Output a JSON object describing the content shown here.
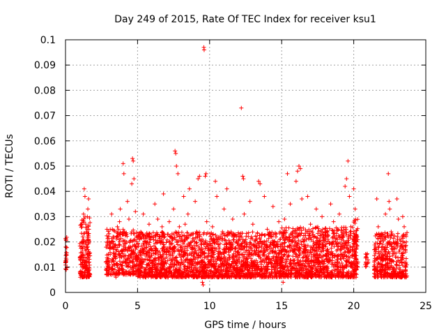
{
  "chart_data": {
    "type": "scatter",
    "title": "Day 249 of 2015, Rate Of TEC Index for receiver ksu1",
    "xlabel": "GPS time / hours",
    "ylabel": "ROTI / TECUs",
    "xlim": [
      0,
      25
    ],
    "ylim": [
      0,
      0.1
    ],
    "xticks": [
      0,
      5,
      10,
      15,
      20,
      25
    ],
    "xtick_labels": [
      "0",
      "5",
      "10",
      "15",
      "20",
      "25"
    ],
    "yticks": [
      0,
      0.01,
      0.02,
      0.03,
      0.04,
      0.05,
      0.06,
      0.07,
      0.08,
      0.09,
      0.1
    ],
    "ytick_labels": [
      "0",
      "0.01",
      "0.02",
      "0.03",
      "0.04",
      "0.05",
      "0.06",
      "0.07",
      "0.08",
      "0.09",
      "0.1"
    ],
    "grid": true,
    "marker": "+",
    "color": "#ff0000",
    "series": [
      {
        "name": "",
        "points": [
          [
            0.0,
            0.012
          ],
          [
            0.02,
            0.018
          ],
          [
            0.03,
            0.021
          ],
          [
            0.05,
            0.009
          ],
          [
            0.06,
            0.013
          ],
          [
            1.05,
            0.011
          ],
          [
            1.1,
            0.014
          ],
          [
            1.2,
            0.022
          ],
          [
            1.25,
            0.031
          ],
          [
            1.3,
            0.041
          ],
          [
            1.35,
            0.038
          ],
          [
            1.4,
            0.027
          ],
          [
            1.45,
            0.019
          ],
          [
            1.5,
            0.009
          ],
          [
            1.55,
            0.015
          ],
          [
            1.6,
            0.037
          ],
          [
            1.62,
            0.025
          ],
          [
            1.65,
            0.012
          ],
          [
            1.7,
            0.007
          ],
          [
            1.2,
            0.006
          ],
          [
            1.3,
            0.008
          ],
          [
            1.4,
            0.012
          ],
          [
            1.5,
            0.018
          ],
          [
            1.6,
            0.021
          ],
          [
            1.15,
            0.016
          ],
          [
            1.35,
            0.011
          ],
          [
            1.45,
            0.024
          ],
          [
            1.55,
            0.033
          ],
          [
            2.8,
            0.012
          ],
          [
            2.9,
            0.018
          ],
          [
            3.0,
            0.009
          ],
          [
            3.1,
            0.015
          ],
          [
            3.2,
            0.031
          ],
          [
            3.3,
            0.022
          ],
          [
            3.4,
            0.011
          ],
          [
            3.5,
            0.017
          ],
          [
            3.6,
            0.026
          ],
          [
            3.7,
            0.019
          ],
          [
            3.8,
            0.033
          ],
          [
            3.9,
            0.014
          ],
          [
            4.0,
            0.051
          ],
          [
            4.05,
            0.047
          ],
          [
            4.1,
            0.024
          ],
          [
            4.2,
            0.012
          ],
          [
            4.3,
            0.036
          ],
          [
            4.4,
            0.029
          ],
          [
            4.5,
            0.018
          ],
          [
            4.6,
            0.043
          ],
          [
            4.65,
            0.053
          ],
          [
            4.7,
            0.052
          ],
          [
            4.75,
            0.045
          ],
          [
            4.8,
            0.021
          ],
          [
            4.9,
            0.014
          ],
          [
            3.0,
            0.007
          ],
          [
            3.5,
            0.006
          ],
          [
            4.0,
            0.008
          ],
          [
            4.5,
            0.007
          ],
          [
            3.25,
            0.025
          ],
          [
            3.75,
            0.028
          ],
          [
            4.25,
            0.02
          ],
          [
            4.85,
            0.032
          ],
          [
            5.0,
            0.013
          ],
          [
            5.2,
            0.022
          ],
          [
            5.4,
            0.031
          ],
          [
            5.6,
            0.018
          ],
          [
            5.8,
            0.027
          ],
          [
            6.0,
            0.012
          ],
          [
            6.2,
            0.035
          ],
          [
            6.4,
            0.029
          ],
          [
            6.5,
            0.022
          ],
          [
            6.6,
            0.015
          ],
          [
            6.8,
            0.039
          ],
          [
            7.0,
            0.017
          ],
          [
            7.2,
            0.028
          ],
          [
            7.4,
            0.011
          ],
          [
            7.5,
            0.033
          ],
          [
            7.6,
            0.056
          ],
          [
            7.65,
            0.055
          ],
          [
            7.7,
            0.05
          ],
          [
            7.8,
            0.047
          ],
          [
            7.9,
            0.026
          ],
          [
            8.0,
            0.014
          ],
          [
            8.2,
            0.038
          ],
          [
            8.4,
            0.022
          ],
          [
            8.5,
            0.031
          ],
          [
            8.6,
            0.041
          ],
          [
            8.8,
            0.017
          ],
          [
            9.0,
            0.036
          ],
          [
            9.2,
            0.045
          ],
          [
            9.3,
            0.046
          ],
          [
            9.4,
            0.019
          ],
          [
            9.5,
            0.004
          ],
          [
            9.55,
            0.003
          ],
          [
            9.6,
            0.097
          ],
          [
            9.62,
            0.096
          ],
          [
            9.7,
            0.046
          ],
          [
            9.75,
            0.047
          ],
          [
            9.8,
            0.028
          ],
          [
            9.9,
            0.013
          ],
          [
            5.5,
            0.008
          ],
          [
            6.3,
            0.007
          ],
          [
            7.1,
            0.006
          ],
          [
            8.1,
            0.008
          ],
          [
            8.9,
            0.009
          ],
          [
            5.1,
            0.016
          ],
          [
            5.9,
            0.021
          ],
          [
            6.7,
            0.026
          ],
          [
            7.3,
            0.019
          ],
          [
            8.3,
            0.027
          ],
          [
            9.1,
            0.024
          ],
          [
            6.9,
            0.012
          ],
          [
            7.7,
            0.014
          ],
          [
            8.7,
            0.011
          ],
          [
            9.45,
            0.016
          ],
          [
            10.0,
            0.012
          ],
          [
            10.2,
            0.026
          ],
          [
            10.4,
            0.044
          ],
          [
            10.5,
            0.038
          ],
          [
            10.6,
            0.021
          ],
          [
            10.8,
            0.015
          ],
          [
            11.0,
            0.033
          ],
          [
            11.2,
            0.041
          ],
          [
            11.4,
            0.018
          ],
          [
            11.6,
            0.029
          ],
          [
            11.8,
            0.023
          ],
          [
            12.0,
            0.016
          ],
          [
            12.2,
            0.073
          ],
          [
            12.3,
            0.046
          ],
          [
            12.35,
            0.045
          ],
          [
            12.4,
            0.031
          ],
          [
            12.6,
            0.019
          ],
          [
            12.8,
            0.036
          ],
          [
            13.0,
            0.027
          ],
          [
            13.2,
            0.021
          ],
          [
            13.4,
            0.044
          ],
          [
            13.5,
            0.043
          ],
          [
            13.6,
            0.018
          ],
          [
            13.8,
            0.038
          ],
          [
            14.0,
            0.025
          ],
          [
            14.2,
            0.016
          ],
          [
            14.4,
            0.034
          ],
          [
            14.6,
            0.022
          ],
          [
            14.8,
            0.028
          ],
          [
            10.3,
            0.008
          ],
          [
            11.1,
            0.007
          ],
          [
            11.9,
            0.006
          ],
          [
            12.7,
            0.008
          ],
          [
            13.5,
            0.007
          ],
          [
            14.3,
            0.009
          ],
          [
            10.7,
            0.013
          ],
          [
            11.5,
            0.017
          ],
          [
            12.5,
            0.012
          ],
          [
            13.3,
            0.015
          ],
          [
            14.1,
            0.013
          ],
          [
            14.9,
            0.019
          ],
          [
            15.0,
            0.012
          ],
          [
            15.2,
            0.029
          ],
          [
            15.4,
            0.047
          ],
          [
            15.6,
            0.035
          ],
          [
            15.8,
            0.022
          ],
          [
            16.0,
            0.044
          ],
          [
            16.1,
            0.048
          ],
          [
            16.2,
            0.05
          ],
          [
            16.3,
            0.049
          ],
          [
            16.4,
            0.037
          ],
          [
            16.6,
            0.021
          ],
          [
            16.8,
            0.038
          ],
          [
            17.0,
            0.027
          ],
          [
            17.2,
            0.015
          ],
          [
            17.4,
            0.033
          ],
          [
            17.6,
            0.02
          ],
          [
            17.8,
            0.03
          ],
          [
            18.0,
            0.024
          ],
          [
            18.2,
            0.017
          ],
          [
            18.4,
            0.035
          ],
          [
            18.6,
            0.028
          ],
          [
            18.8,
            0.019
          ],
          [
            19.0,
            0.031
          ],
          [
            19.2,
            0.022
          ],
          [
            19.4,
            0.042
          ],
          [
            19.5,
            0.045
          ],
          [
            19.6,
            0.052
          ],
          [
            19.7,
            0.038
          ],
          [
            19.8,
            0.026
          ],
          [
            20.0,
            0.041
          ],
          [
            20.1,
            0.033
          ],
          [
            20.2,
            0.02
          ],
          [
            20.3,
            0.012
          ],
          [
            15.1,
            0.004
          ],
          [
            16.5,
            0.008
          ],
          [
            17.5,
            0.007
          ],
          [
            18.5,
            0.006
          ],
          [
            19.3,
            0.008
          ],
          [
            20.2,
            0.009
          ],
          [
            15.5,
            0.016
          ],
          [
            16.7,
            0.014
          ],
          [
            17.3,
            0.012
          ],
          [
            18.1,
            0.013
          ],
          [
            19.1,
            0.015
          ],
          [
            19.9,
            0.017
          ],
          [
            20.8,
            0.011
          ],
          [
            20.9,
            0.015
          ],
          [
            21.0,
            0.012
          ],
          [
            21.5,
            0.018
          ],
          [
            21.6,
            0.037
          ],
          [
            21.7,
            0.026
          ],
          [
            21.8,
            0.022
          ],
          [
            22.0,
            0.015
          ],
          [
            22.2,
            0.031
          ],
          [
            22.4,
            0.047
          ],
          [
            22.45,
            0.036
          ],
          [
            22.5,
            0.033
          ],
          [
            22.6,
            0.024
          ],
          [
            22.8,
            0.018
          ],
          [
            23.0,
            0.037
          ],
          [
            23.1,
            0.029
          ],
          [
            23.2,
            0.021
          ],
          [
            23.4,
            0.03
          ],
          [
            23.5,
            0.026
          ],
          [
            23.6,
            0.016
          ],
          [
            21.5,
            0.009
          ],
          [
            22.1,
            0.007
          ],
          [
            22.7,
            0.006
          ],
          [
            23.3,
            0.008
          ],
          [
            23.6,
            0.009
          ],
          [
            21.9,
            0.013
          ],
          [
            22.3,
            0.011
          ],
          [
            22.9,
            0.014
          ],
          [
            23.5,
            0.012
          ]
        ],
        "density_bands": [
          {
            "x": [
              0.0,
              0.1
            ],
            "y": [
              0.008,
              0.022
            ],
            "n": 20
          },
          {
            "x": [
              1.0,
              1.7
            ],
            "y": [
              0.006,
              0.03
            ],
            "n": 160
          },
          {
            "x": [
              2.8,
              5.0
            ],
            "y": [
              0.007,
              0.025
            ],
            "n": 320
          },
          {
            "x": [
              5.0,
              10.0
            ],
            "y": [
              0.006,
              0.024
            ],
            "n": 900
          },
          {
            "x": [
              10.0,
              15.0
            ],
            "y": [
              0.006,
              0.024
            ],
            "n": 900
          },
          {
            "x": [
              15.0,
              20.2
            ],
            "y": [
              0.006,
              0.026
            ],
            "n": 950
          },
          {
            "x": [
              20.0,
              20.3
            ],
            "y": [
              0.009,
              0.03
            ],
            "n": 40
          },
          {
            "x": [
              20.8,
              21.0
            ],
            "y": [
              0.01,
              0.016
            ],
            "n": 12
          },
          {
            "x": [
              21.4,
              23.7
            ],
            "y": [
              0.006,
              0.024
            ],
            "n": 380
          }
        ]
      }
    ]
  }
}
